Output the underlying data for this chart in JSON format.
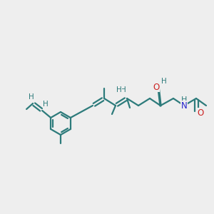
{
  "bg_color": "#eeeeee",
  "bond_color": "#2d7b7b",
  "N_color": "#2222cc",
  "O_color": "#cc2222",
  "font_size": 8.5,
  "linewidth": 1.6,
  "figsize": [
    3.0,
    3.0
  ],
  "dpi": 100,
  "xlim": [
    0,
    300
  ],
  "ylim": [
    0,
    300
  ]
}
